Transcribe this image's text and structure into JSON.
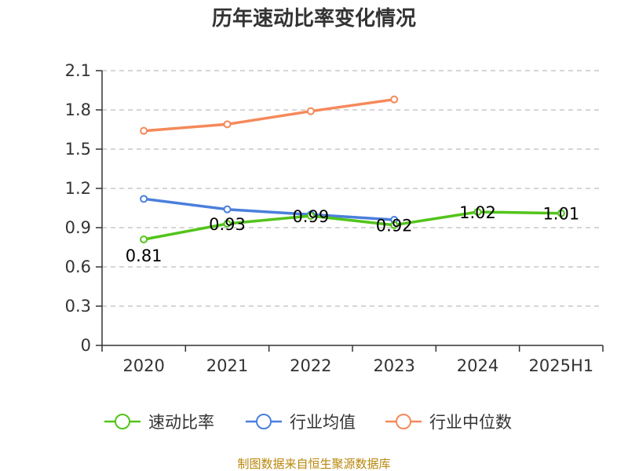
{
  "chart_data": {
    "type": "line",
    "title": "历年速动比率变化情况",
    "categories": [
      "2020",
      "2021",
      "2022",
      "2023",
      "2024",
      "2025H1"
    ],
    "y_ticks": [
      "0",
      "0.3",
      "0.6",
      "0.9",
      "1.2",
      "1.5",
      "1.8",
      "2.1"
    ],
    "ylim": [
      0,
      2.1
    ],
    "grid": true,
    "legend_position": "bottom",
    "series": [
      {
        "name": "速动比率",
        "color": "#52c41a",
        "values": [
          0.81,
          0.93,
          0.99,
          0.92,
          1.02,
          1.01
        ],
        "labels": [
          "0.81",
          "0.93",
          "0.99",
          "0.92",
          "1.02",
          "1.01"
        ]
      },
      {
        "name": "行业均值",
        "color": "#4a7fdc",
        "values": [
          1.12,
          1.04,
          1.0,
          0.96,
          null,
          null
        ]
      },
      {
        "name": "行业中位数",
        "color": "#f5895a",
        "values": [
          1.64,
          1.69,
          1.79,
          1.88,
          null,
          null
        ]
      }
    ]
  },
  "source_text": "制图数据来自恒生聚源数据库"
}
